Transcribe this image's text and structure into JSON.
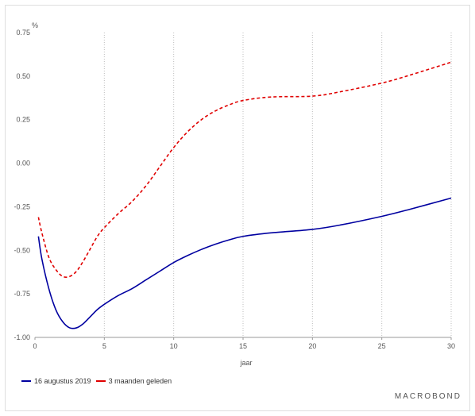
{
  "chart_data": {
    "type": "line",
    "ylabel": "%",
    "xlabel": "jaar",
    "xlim": [
      0,
      30
    ],
    "ylim": [
      -1.0,
      0.75
    ],
    "x_ticks": [
      0,
      5,
      10,
      15,
      20,
      25,
      30
    ],
    "x_tick_labels": [
      "0",
      "5",
      "10",
      "15",
      "20",
      "25",
      "30"
    ],
    "y_ticks": [
      -1.0,
      -0.75,
      -0.5,
      -0.25,
      0.0,
      0.25,
      0.5,
      0.75
    ],
    "y_tick_labels": [
      "-1.00",
      "-0.75",
      "-0.50",
      "-0.25",
      "0.00",
      "0.25",
      "0.50",
      "0.75"
    ],
    "grid": "vertical dotted",
    "legend_position": "bottom-left",
    "series": [
      {
        "name": "16 augustus 2019",
        "color": "#0000a0",
        "style": "solid",
        "x": [
          0.25,
          0.5,
          1,
          1.5,
          2,
          2.5,
          3,
          3.5,
          4,
          4.5,
          5,
          6,
          7,
          8,
          9,
          10,
          11,
          12,
          13,
          14,
          15,
          17,
          20,
          22,
          25,
          27,
          30
        ],
        "y": [
          -0.42,
          -0.55,
          -0.72,
          -0.84,
          -0.91,
          -0.945,
          -0.945,
          -0.92,
          -0.88,
          -0.84,
          -0.81,
          -0.76,
          -0.72,
          -0.67,
          -0.62,
          -0.57,
          -0.53,
          -0.495,
          -0.465,
          -0.44,
          -0.42,
          -0.4,
          -0.38,
          -0.355,
          -0.305,
          -0.265,
          -0.2
        ]
      },
      {
        "name": "3 maanden geleden",
        "color": "#e00000",
        "style": "dashed",
        "x": [
          0.25,
          0.5,
          1,
          1.5,
          2,
          2.5,
          3,
          3.5,
          4,
          4.5,
          5,
          6,
          7,
          8,
          9,
          10,
          11,
          12,
          13,
          14,
          15,
          17,
          20,
          22,
          25,
          27,
          30
        ],
        "y": [
          -0.31,
          -0.4,
          -0.54,
          -0.61,
          -0.65,
          -0.65,
          -0.62,
          -0.56,
          -0.49,
          -0.42,
          -0.37,
          -0.29,
          -0.22,
          -0.13,
          -0.02,
          0.09,
          0.18,
          0.25,
          0.3,
          0.335,
          0.36,
          0.38,
          0.385,
          0.41,
          0.46,
          0.505,
          0.58
        ]
      }
    ]
  },
  "legend": {
    "items": [
      {
        "label": "16 augustus 2019"
      },
      {
        "label": "3 maanden geleden"
      }
    ]
  },
  "brand": {
    "text": "MACROBOND"
  }
}
